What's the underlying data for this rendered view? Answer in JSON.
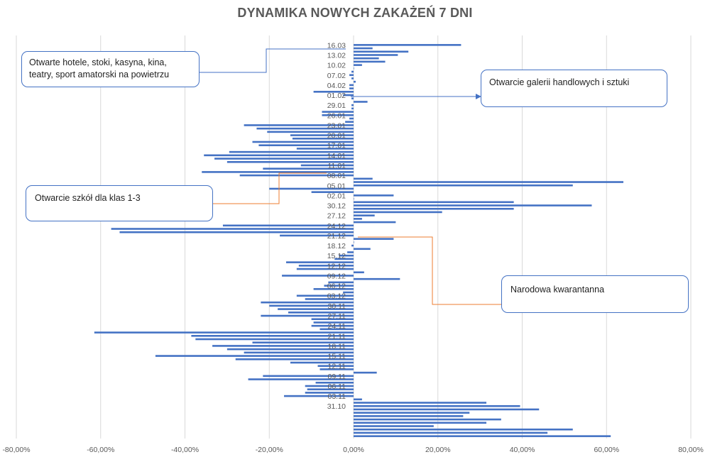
{
  "title": "DYNAMIKA NOWYCH ZAKAŻEŃ 7 DNI",
  "colors": {
    "bar": "#4472c4",
    "grid": "#d9d9d9",
    "axis_text": "#595959",
    "arrow_blue": "#4472c4",
    "arrow_orange": "#ed7d31"
  },
  "annotations": {
    "hotels": "Otwarte hotele, stoki, kasyna, kina, teatry, sport amatorski na powietrzu",
    "galleries": "Otwarcie galerii handlowych i sztuki",
    "schools": "Otwarcie szkół dla klas 1-3",
    "quarantine": "Narodowa kwarantanna"
  },
  "chart_data": {
    "type": "bar",
    "orientation": "horizontal",
    "title": "DYNAMIKA NOWYCH ZAKAŻEŃ 7 DNI",
    "xlabel": "",
    "ylabel": "",
    "xlim": [
      -0.8,
      0.8
    ],
    "x_ticks": [
      "-80,00%",
      "-60,00%",
      "-40,00%",
      "-20,00%",
      "0,00%",
      "20,00%",
      "40,00%",
      "60,00%",
      "80,00%"
    ],
    "grid": "vertical",
    "legend": "none",
    "category_labels": [
      "16.03",
      "13.02",
      "10.02",
      "07.02",
      "04.02",
      "01.02",
      "29.01",
      "26.01",
      "23.01",
      "20.01",
      "17.01",
      "14.01",
      "11.01",
      "08.01",
      "05.01",
      "02.01",
      "30.12",
      "27.12",
      "24.12",
      "21.12",
      "18.12",
      "15.12",
      "12.12",
      "09.12",
      "06.12",
      "03.12",
      "30.11",
      "27.11",
      "24.11",
      "21.11",
      "18.11",
      "15.11",
      "12.11",
      "09.11",
      "06.11",
      "03.11",
      "31.10"
    ],
    "series": [
      {
        "values": [
          0.255,
          0.045,
          0.13,
          0.105,
          0.06,
          0.075,
          0.02,
          0.0,
          -0.005,
          -0.01,
          -0.005,
          0.005,
          -0.01,
          -0.01,
          -0.095,
          -0.025,
          -0.005,
          0.033,
          -0.005,
          -0.005,
          -0.075,
          -0.075,
          -0.01,
          -0.02,
          -0.26,
          -0.23,
          -0.205,
          -0.15,
          -0.145,
          -0.24,
          -0.225,
          -0.135,
          -0.295,
          -0.355,
          -0.33,
          -0.3,
          -0.125,
          -0.215,
          -0.36,
          -0.27,
          0.045,
          0.64,
          0.52,
          -0.2,
          -0.1,
          0.095,
          0.0,
          0.38,
          0.565,
          0.38,
          0.21,
          0.05,
          0.02,
          0.1,
          -0.31,
          -0.575,
          -0.555,
          -0.175,
          0.095,
          0.0,
          -0.005,
          0.04,
          -0.015,
          -0.035,
          -0.045,
          -0.16,
          -0.13,
          -0.135,
          0.025,
          -0.17,
          0.11,
          -0.06,
          -0.07,
          -0.095,
          -0.025,
          -0.135,
          -0.115,
          -0.22,
          -0.2,
          -0.18,
          -0.155,
          -0.22,
          -0.1,
          -0.095,
          -0.1,
          -0.08,
          -0.615,
          -0.385,
          -0.375,
          -0.24,
          -0.335,
          -0.3,
          -0.26,
          -0.47,
          -0.28,
          -0.15,
          -0.085,
          -0.08,
          0.055,
          -0.215,
          -0.25,
          -0.09,
          -0.115,
          -0.11,
          -0.115,
          -0.165,
          0.02,
          0.315,
          0.395,
          0.44,
          0.275,
          0.26,
          0.35,
          0.315,
          0.19,
          0.52,
          0.46,
          0.61
        ]
      }
    ]
  }
}
